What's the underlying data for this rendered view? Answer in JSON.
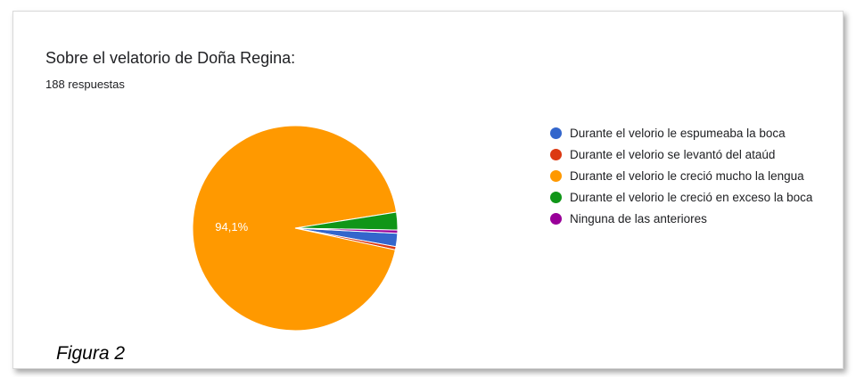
{
  "chart_data": {
    "type": "pie",
    "title": "Sobre el velatorio de Doña Regina:",
    "subtitle": "188 respuestas",
    "categories": [
      "Durante el velorio le espumeaba la boca",
      "Durante el velorio se levantó del ataúd",
      "Durante el velorio le creció mucho la lengua",
      "Durante el velorio le creció en exceso la boca",
      "Ninguna de las anteriores"
    ],
    "values": [
      2.1,
      0.5,
      94.1,
      2.8,
      0.5
    ],
    "colors": [
      "#3366cc",
      "#dc3912",
      "#ff9900",
      "#109618",
      "#990099"
    ],
    "data_labels": [
      "",
      "",
      "94,1%",
      "",
      ""
    ],
    "legend_position": "right"
  },
  "caption": "Figura 2"
}
